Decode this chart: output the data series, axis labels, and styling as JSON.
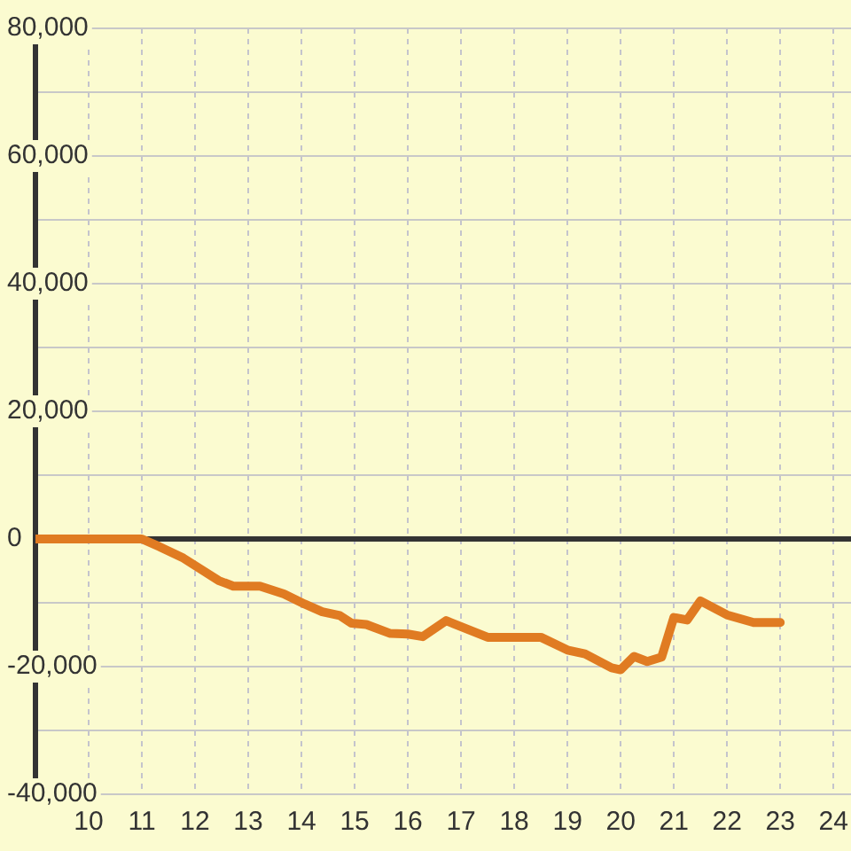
{
  "chart_data": {
    "type": "line",
    "x": [
      9,
      11,
      11.33,
      11.78,
      12.44,
      12.72,
      13.22,
      13.67,
      14.06,
      14.39,
      14.72,
      14.94,
      15.22,
      15.67,
      16,
      16.28,
      16.72,
      17.5,
      18.5,
      19,
      19.33,
      19.83,
      20,
      20.25,
      20.5,
      20.77,
      21,
      21.25,
      21.5,
      22,
      22.5,
      23
    ],
    "series": [
      {
        "color": "#e07b22",
        "values": [
          0,
          0,
          -1200,
          -3000,
          -6500,
          -7400,
          -7400,
          -8600,
          -10200,
          -11400,
          -12000,
          -13200,
          -13400,
          -14800,
          -14900,
          -15300,
          -12800,
          -15400,
          -15400,
          -17400,
          -18000,
          -20200,
          -20500,
          -18400,
          -19200,
          -18500,
          -12300,
          -12700,
          -9700,
          -11900,
          -13100,
          -13100
        ]
      }
    ],
    "xlim": [
      9,
      24.33
    ],
    "xticks": [
      10,
      11,
      12,
      13,
      14,
      15,
      16,
      17,
      18,
      19,
      20,
      21,
      22,
      23,
      24
    ],
    "ylim": [
      -40000,
      80000
    ],
    "yticks": [
      {
        "value": -40000,
        "label": "-40,000"
      },
      {
        "value": -30000,
        "label": null
      },
      {
        "value": -20000,
        "label": "-20,000"
      },
      {
        "value": -10000,
        "label": null
      },
      0,
      {
        "value": 10000,
        "label": null
      },
      {
        "value": 20000,
        "label": "20,000"
      },
      {
        "value": 30000,
        "label": null
      },
      {
        "value": 40000,
        "label": "40,000"
      },
      {
        "value": 50000,
        "label": null
      },
      {
        "value": 60000,
        "label": "60,000"
      },
      {
        "value": 70000,
        "label": null
      },
      {
        "value": 80000,
        "label": "80,000"
      }
    ],
    "grid": true,
    "ref_lines": [
      {
        "axis": "y",
        "value": 0,
        "color": "#333333"
      }
    ]
  }
}
